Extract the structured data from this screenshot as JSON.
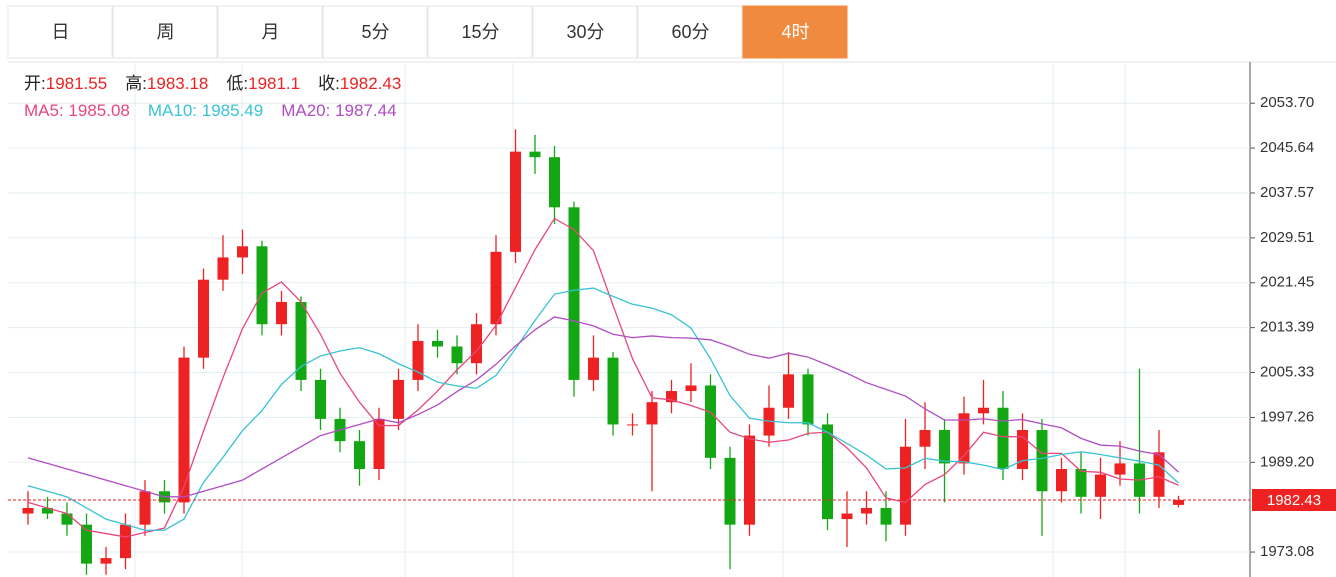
{
  "tabs": [
    "日",
    "周",
    "月",
    "5分",
    "15分",
    "30分",
    "60分",
    "4时"
  ],
  "active_tab": 7,
  "chart_data": {
    "type": "candlestick",
    "info_labels": {
      "open": "开:",
      "high": "高:",
      "low": "低:",
      "close": "收:"
    },
    "up_color": "#ee2222",
    "down_color": "#13a813",
    "open": [
      1980,
      1981,
      1980,
      1978,
      1971,
      1972,
      1978,
      1984,
      1982,
      2008,
      2022,
      2026,
      2028,
      2014,
      2018,
      2004,
      1997,
      1993,
      1988,
      1997,
      2004,
      2011,
      2010,
      2007,
      2014,
      2027,
      2045,
      2044,
      2035,
      2004,
      2008,
      1996,
      1996,
      2000,
      2002,
      2003,
      1990,
      1978,
      1994,
      1999,
      2005,
      1996,
      1979,
      1980,
      1981,
      1978,
      1992,
      1995,
      1989,
      1998,
      1999,
      1988,
      1995,
      1984,
      1988,
      1983,
      1987,
      1989,
      1983,
      1981.55
    ],
    "high": [
      1984,
      1983,
      1982,
      1980,
      1974,
      1980,
      1986,
      1986,
      2010,
      2024,
      2030,
      2031,
      2029,
      2020,
      2019,
      2006,
      1999,
      1995,
      1999,
      2006,
      2014,
      2013,
      2012,
      2016,
      2030,
      2049,
      2048,
      2046,
      2036,
      2012,
      2009,
      1998,
      2002,
      2004,
      2007,
      2005,
      1992,
      1996,
      2003,
      2009,
      2006,
      1998,
      1984,
      1984,
      1984,
      1997,
      2000,
      1997,
      2001,
      2004,
      2002,
      1998,
      1997,
      1990,
      1991,
      1990,
      1993,
      2006,
      1995,
      1983.18
    ],
    "low": [
      1978,
      1979,
      1976,
      1969,
      1969,
      1970,
      1976,
      1980,
      1980,
      2006,
      2020,
      2023,
      2012,
      2012,
      2002,
      1995,
      1991,
      1985,
      1986,
      1995,
      2002,
      2008,
      2005,
      2005,
      2012,
      2025,
      2041,
      2032,
      2001,
      2002,
      1994,
      1994,
      1984,
      1998,
      2000,
      1988,
      1970,
      1976,
      1992,
      1997,
      1994,
      1977,
      1974,
      1978,
      1975,
      1976,
      1988,
      1982,
      1987,
      1996,
      1986,
      1986,
      1976,
      1982,
      1980,
      1979,
      1985,
      1980,
      1981,
      1981.1
    ],
    "close": [
      1981,
      1980,
      1978,
      1971,
      1972,
      1978,
      1984,
      1982,
      2008,
      2022,
      2026,
      2028,
      2014,
      2018,
      2004,
      1997,
      1993,
      1988,
      1997,
      2004,
      2011,
      2010,
      2007,
      2014,
      2027,
      2045,
      2044,
      2035,
      2004,
      2008,
      1996,
      1996,
      2000,
      2002,
      2003,
      1990,
      1978,
      1994,
      1999,
      2005,
      1996,
      1979,
      1980,
      1981,
      1978,
      1992,
      1995,
      1989,
      1998,
      1999,
      1988,
      1995,
      1984,
      1988,
      1983,
      1987,
      1989,
      1983,
      1991,
      1982.43
    ],
    "series": [
      {
        "name": "MA5",
        "color": "#e8467c",
        "values": [
          1982,
          1981,
          1980,
          1977,
          1976.4,
          1975.8,
          1976.6,
          1977.4,
          1984.8,
          1994.8,
          2004.4,
          2013.2,
          2019.6,
          2021.6,
          2018,
          2012.2,
          2005.2,
          2000,
          1995.8,
          1995.8,
          1998.6,
          2002,
          2005.8,
          2009.2,
          2013.8,
          2020.6,
          2027.4,
          2033,
          2031,
          2027.2,
          2017.4,
          2007.8,
          2000.8,
          2000.4,
          1999.4,
          1998.2,
          1994.6,
          1993.4,
          1992.8,
          1993.2,
          1994.4,
          1994.6,
          1991.8,
          1988.2,
          1982.8,
          1982,
          1985.2,
          1987,
          1990.4,
          1994.6,
          1993.8,
          1993.8,
          1990.8,
          1990.8,
          1987.6,
          1987.4,
          1986.2,
          1986,
          1986.6,
          1985.08
        ]
      },
      {
        "name": "MA10",
        "color": "#37c3d3",
        "values": [
          1985,
          1984,
          1983,
          1981,
          1979,
          1978,
          1977,
          1977,
          1979,
          1985.6,
          1990.1,
          1994.9,
          1998.5,
          2003.2,
          2006.4,
          2008.3,
          2009.2,
          2009.8,
          2008.7,
          2006.9,
          2005.4,
          2003.6,
          2002.9,
          2002.5,
          2004.8,
          2009.6,
          2014.7,
          2019.4,
          2020.1,
          2020.5,
          2019,
          2017.6,
          2016.9,
          2015.7,
          2013.3,
          2007.8,
          2001.2,
          1997.1,
          1996.6,
          1996.3,
          1996.3,
          1994.6,
          1992.6,
          1990.5,
          1988,
          1988.2,
          1989.9,
          1989.4,
          1989.3,
          1988.7,
          1987.9,
          1989.5,
          1989.9,
          1990.6,
          1991.1,
          1990.6,
          1990,
          1989.4,
          1988.7,
          1985.49
        ]
      },
      {
        "name": "MA20",
        "color": "#b04cc4",
        "values": [
          1990,
          1989,
          1988,
          1987,
          1986,
          1985,
          1984,
          1983,
          1983,
          1984,
          1985,
          1986,
          1988,
          1990,
          1992,
          1994,
          1995,
          1996,
          1997,
          1996.3,
          1997.8,
          1999.5,
          2001.9,
          2004,
          2006.8,
          2010.1,
          2013,
          2015.3,
          2014.6,
          2013.7,
          2012.2,
          2011.6,
          2011.9,
          2011.6,
          2011.5,
          2011.2,
          2010,
          2008.6,
          2007.9,
          2008.8,
          2008.1,
          2006.7,
          2005.2,
          2003.5,
          2002.3,
          2001.1,
          1998.8,
          1996.8,
          1996.8,
          1997,
          1996.6,
          1996.9,
          1996.1,
          1995.4,
          1993.5,
          1992.3,
          1992.1,
          1991.2,
          1990.6,
          1987.44
        ]
      }
    ],
    "ylim": [
      1968.6,
      2061.1
    ],
    "yticks": [
      {
        "value": 2053.7,
        "label": "2053.70"
      },
      2045.64,
      2037.57,
      2029.51,
      2021.45,
      2013.39,
      2005.33,
      1997.26,
      {
        "value": 1989.2,
        "label": "1989.20"
      },
      1973.08
    ],
    "grid": true
  }
}
